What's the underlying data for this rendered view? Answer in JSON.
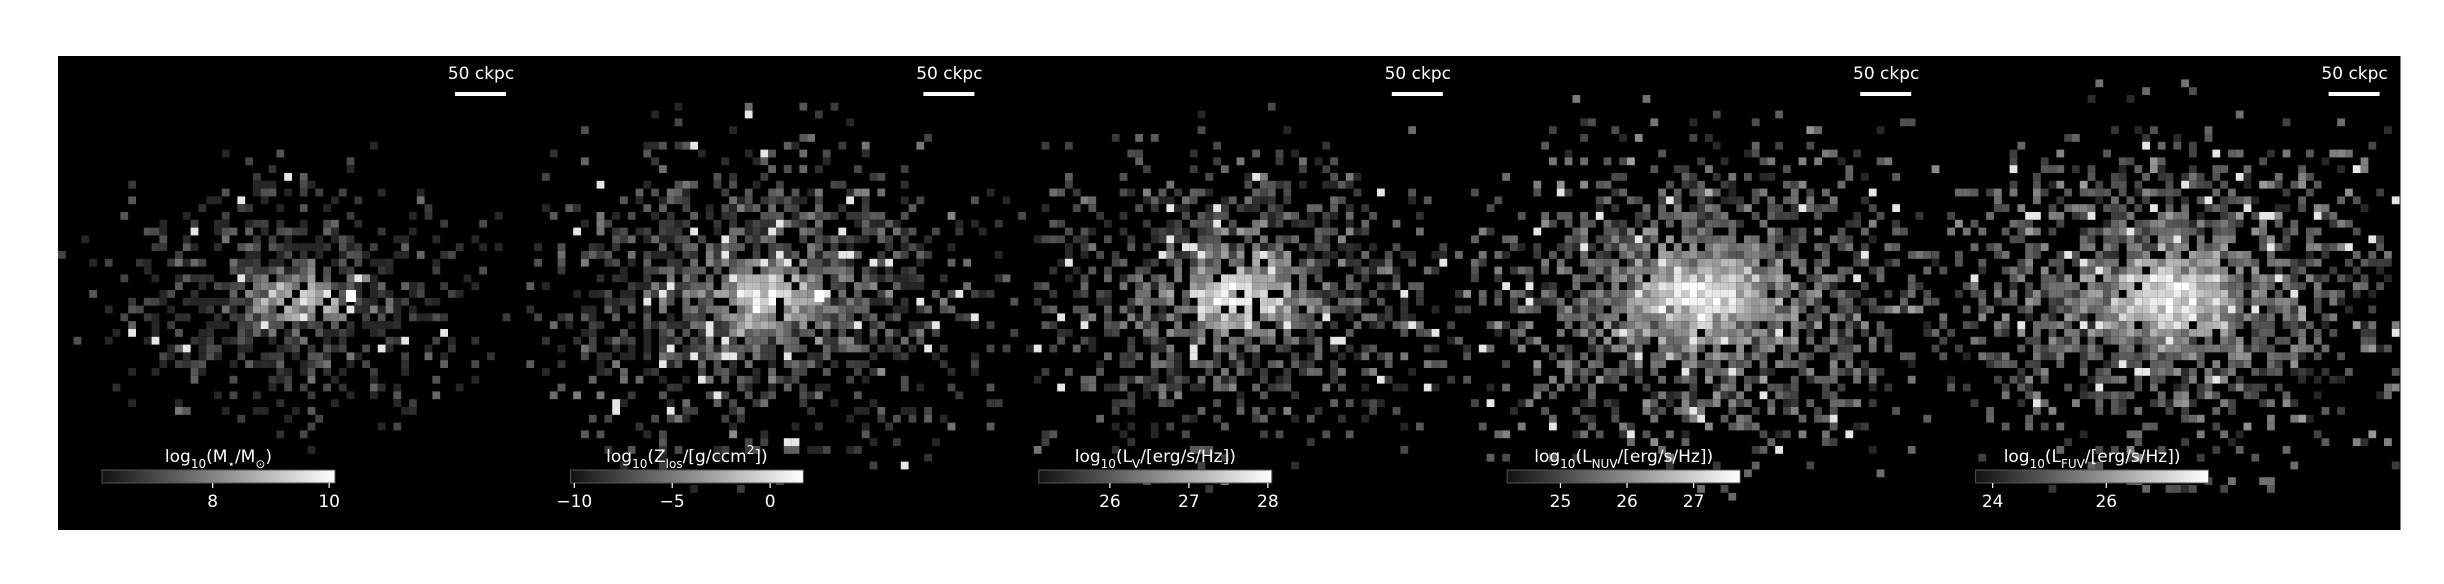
{
  "chart_data": [
    {
      "type": "image",
      "scale_bar_label": "50 ckpc",
      "colorbar": {
        "label_parts": [
          {
            "text": "log"
          },
          {
            "text": "10",
            "sub": true
          },
          {
            "text": "(M"
          },
          {
            "text": "⋆",
            "sub": true
          },
          {
            "text": "/M"
          },
          {
            "text": "⊙",
            "sub": true
          },
          {
            "text": ")"
          }
        ],
        "lim": [
          6.1,
          10.1
        ],
        "ticks": [
          8,
          10
        ]
      }
    },
    {
      "type": "image",
      "scale_bar_label": "50 ckpc",
      "colorbar": {
        "label_parts": [
          {
            "text": "log"
          },
          {
            "text": "10",
            "sub": true
          },
          {
            "text": "(Z"
          },
          {
            "text": "los",
            "sub": true
          },
          {
            "text": "/[g/ccm"
          },
          {
            "text": "2",
            "sup": true
          },
          {
            "text": "])"
          }
        ],
        "lim": [
          -10.2,
          1.7
        ],
        "ticks": [
          {
            "value": -10,
            "label": "−10"
          },
          {
            "value": -5,
            "label": "−5"
          },
          0
        ]
      }
    },
    {
      "type": "image",
      "scale_bar_label": "50 ckpc",
      "colorbar": {
        "label_parts": [
          {
            "text": "log"
          },
          {
            "text": "10",
            "sub": true
          },
          {
            "text": "(L"
          },
          {
            "text": "V",
            "sub": true
          },
          {
            "text": "/[erg/s/Hz])"
          }
        ],
        "lim": [
          25.1,
          28.05
        ],
        "ticks": [
          26,
          27,
          28
        ]
      }
    },
    {
      "type": "image",
      "scale_bar_label": "50 ckpc",
      "colorbar": {
        "label_parts": [
          {
            "text": "log"
          },
          {
            "text": "10",
            "sub": true
          },
          {
            "text": "(L"
          },
          {
            "text": "NUV",
            "sub": true
          },
          {
            "text": "/[erg/s/Hz])"
          }
        ],
        "lim": [
          24.2,
          27.7
        ],
        "ticks": [
          25,
          26,
          27
        ]
      }
    },
    {
      "type": "image",
      "scale_bar_label": "50 ckpc",
      "colorbar": {
        "label_parts": [
          {
            "text": "log"
          },
          {
            "text": "10",
            "sub": true
          },
          {
            "text": "(L"
          },
          {
            "text": "FUV",
            "sub": true
          },
          {
            "text": "/[erg/s/Hz])"
          }
        ],
        "lim": [
          23.7,
          27.8
        ],
        "ticks": [
          24,
          26
        ]
      }
    }
  ]
}
